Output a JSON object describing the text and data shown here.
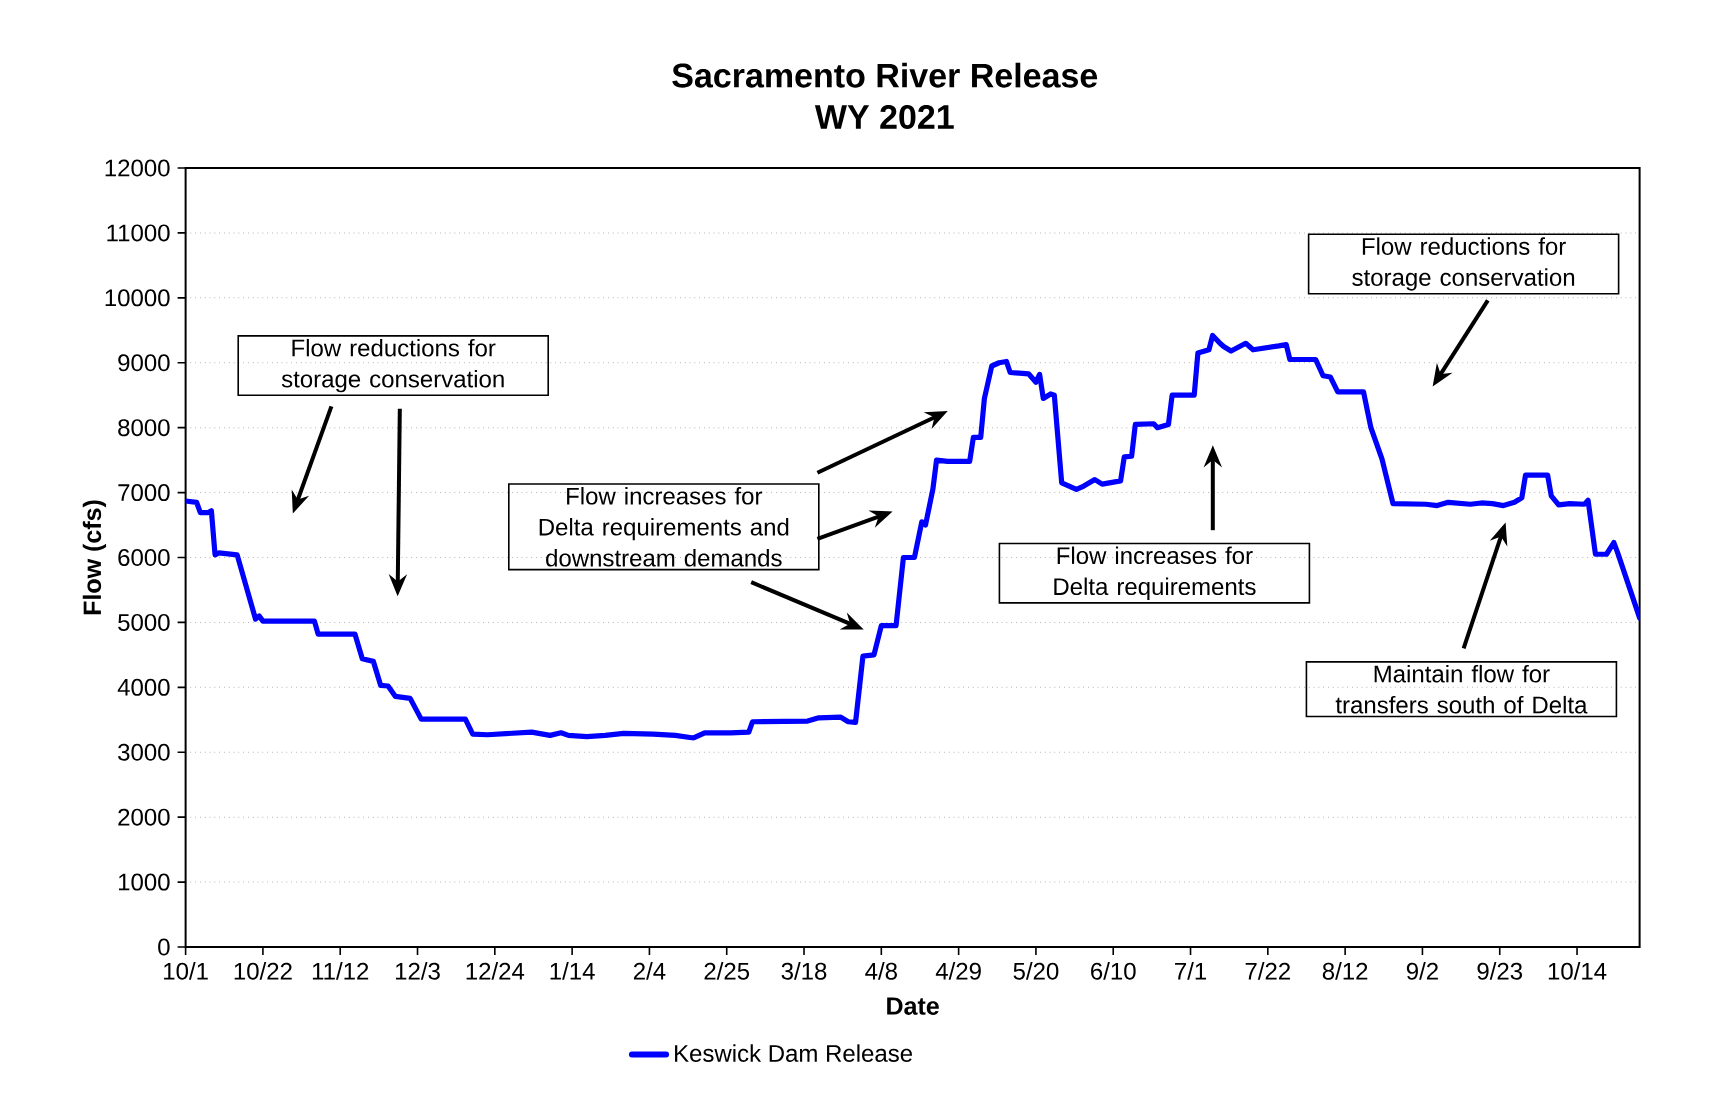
{
  "chart_data": {
    "type": "line",
    "title": "Sacramento River Release",
    "subtitle": "WY 2021",
    "xlabel": "Date",
    "ylabel": "Flow (cfs)",
    "x": [
      "2020-10-01",
      "2020-10-04",
      "2020-10-05",
      "2020-10-07",
      "2020-10-08",
      "2020-10-09",
      "2020-10-10",
      "2020-10-15",
      "2020-10-20",
      "2020-10-21",
      "2020-10-22",
      "2020-11-05",
      "2020-11-06",
      "2020-11-16",
      "2020-11-18",
      "2020-11-21",
      "2020-11-23",
      "2020-11-25",
      "2020-11-27",
      "2020-12-01",
      "2020-12-04",
      "2020-12-16",
      "2020-12-18",
      "2020-12-22",
      "2021-01-03",
      "2021-01-08",
      "2021-01-11",
      "2021-01-13",
      "2021-01-18",
      "2021-01-23",
      "2021-01-28",
      "2021-02-05",
      "2021-02-11",
      "2021-02-16",
      "2021-02-19",
      "2021-02-26",
      "2021-03-03",
      "2021-03-04",
      "2021-03-19",
      "2021-03-22",
      "2021-03-28",
      "2021-03-30",
      "2021-04-01",
      "2021-04-03",
      "2021-04-06",
      "2021-04-08",
      "2021-04-12",
      "2021-04-14",
      "2021-04-17",
      "2021-04-19",
      "2021-04-20",
      "2021-04-22",
      "2021-04-23",
      "2021-04-26",
      "2021-05-02",
      "2021-05-03",
      "2021-05-05",
      "2021-05-06",
      "2021-05-08",
      "2021-05-10",
      "2021-05-12",
      "2021-05-13",
      "2021-05-18",
      "2021-05-20",
      "2021-05-21",
      "2021-05-22",
      "2021-05-24",
      "2021-05-25",
      "2021-05-27",
      "2021-05-31",
      "2021-06-02",
      "2021-06-05",
      "2021-06-07",
      "2021-06-12",
      "2021-06-13",
      "2021-06-15",
      "2021-06-16",
      "2021-06-21",
      "2021-06-22",
      "2021-06-25",
      "2021-06-26",
      "2021-07-02",
      "2021-07-03",
      "2021-07-06",
      "2021-07-07",
      "2021-07-09",
      "2021-07-10",
      "2021-07-12",
      "2021-07-16",
      "2021-07-18",
      "2021-07-25",
      "2021-07-27",
      "2021-07-28",
      "2021-08-04",
      "2021-08-06",
      "2021-08-08",
      "2021-08-10",
      "2021-08-17",
      "2021-08-19",
      "2021-08-22",
      "2021-08-25",
      "2021-09-03",
      "2021-09-06",
      "2021-09-09",
      "2021-09-15",
      "2021-09-18",
      "2021-09-21",
      "2021-09-24",
      "2021-09-27",
      "2021-09-29",
      "2021-09-30",
      "2021-10-06",
      "2021-10-07",
      "2021-10-09",
      "2021-10-12",
      "2021-10-16",
      "2021-10-17",
      "2021-10-19",
      "2021-10-22",
      "2021-10-24",
      "2021-10-25",
      "2021-10-31"
    ],
    "series": [
      {
        "name": "Keswick Dam Release",
        "color": "#0000ff",
        "values": [
          6870,
          6850,
          6690,
          6690,
          6720,
          6040,
          6070,
          6040,
          5050,
          5100,
          5020,
          5020,
          4820,
          4820,
          4440,
          4400,
          4030,
          4020,
          3860,
          3830,
          3510,
          3510,
          3280,
          3270,
          3310,
          3260,
          3300,
          3260,
          3240,
          3260,
          3290,
          3280,
          3260,
          3220,
          3300,
          3300,
          3310,
          3470,
          3480,
          3530,
          3540,
          3470,
          3460,
          4480,
          4500,
          4950,
          4950,
          6000,
          6000,
          6550,
          6500,
          7050,
          7500,
          7480,
          7480,
          7850,
          7850,
          8450,
          8950,
          9000,
          9020,
          8850,
          8830,
          8700,
          8820,
          8450,
          8520,
          8500,
          7150,
          7050,
          7100,
          7200,
          7130,
          7180,
          7550,
          7560,
          8050,
          8060,
          8000,
          8050,
          8500,
          8500,
          9150,
          9200,
          9420,
          9300,
          9250,
          9180,
          9300,
          9200,
          9260,
          9280,
          9050,
          9050,
          8800,
          8780,
          8550,
          8550,
          8000,
          7520,
          6830,
          6820,
          6800,
          6850,
          6820,
          6840,
          6830,
          6800,
          6850,
          6920,
          7270,
          7270,
          6950,
          6810,
          6830,
          6820,
          6880,
          6050,
          6050,
          6230,
          6080,
          5070
        ]
      }
    ],
    "xlim": [
      "2020-10-01",
      "2021-10-31"
    ],
    "xticks": [
      {
        "value": "2020-10-01",
        "label": "10/1"
      },
      {
        "value": "2020-10-22",
        "label": "10/22"
      },
      {
        "value": "2020-11-12",
        "label": "11/12"
      },
      {
        "value": "2020-12-03",
        "label": "12/3"
      },
      {
        "value": "2020-12-24",
        "label": "12/24"
      },
      {
        "value": "2021-01-14",
        "label": "1/14"
      },
      {
        "value": "2021-02-04",
        "label": "2/4"
      },
      {
        "value": "2021-02-25",
        "label": "2/25"
      },
      {
        "value": "2021-03-18",
        "label": "3/18"
      },
      {
        "value": "2021-04-08",
        "label": "4/8"
      },
      {
        "value": "2021-04-29",
        "label": "4/29"
      },
      {
        "value": "2021-05-20",
        "label": "5/20"
      },
      {
        "value": "2021-06-10",
        "label": "6/10"
      },
      {
        "value": "2021-07-01",
        "label": "7/1"
      },
      {
        "value": "2021-07-22",
        "label": "7/22"
      },
      {
        "value": "2021-08-12",
        "label": "8/12"
      },
      {
        "value": "2021-09-02",
        "label": "9/2"
      },
      {
        "value": "2021-09-23",
        "label": "9/23"
      },
      {
        "value": "2021-10-14",
        "label": "10/14"
      }
    ],
    "ylim": [
      0,
      12000
    ],
    "yticks": [
      0,
      1000,
      2000,
      3000,
      4000,
      5000,
      6000,
      7000,
      8000,
      9000,
      10000,
      11000,
      12000
    ],
    "grid": "y",
    "legend": "bottom",
    "line_style": "solid",
    "annotations": [
      "Flow reductions for storage conservation",
      "Flow increases for Delta requirements and downstream demands",
      "Flow increases for Delta requirements",
      "Flow reductions for storage conservation",
      "Maintain flow for transfers south of Delta"
    ]
  }
}
